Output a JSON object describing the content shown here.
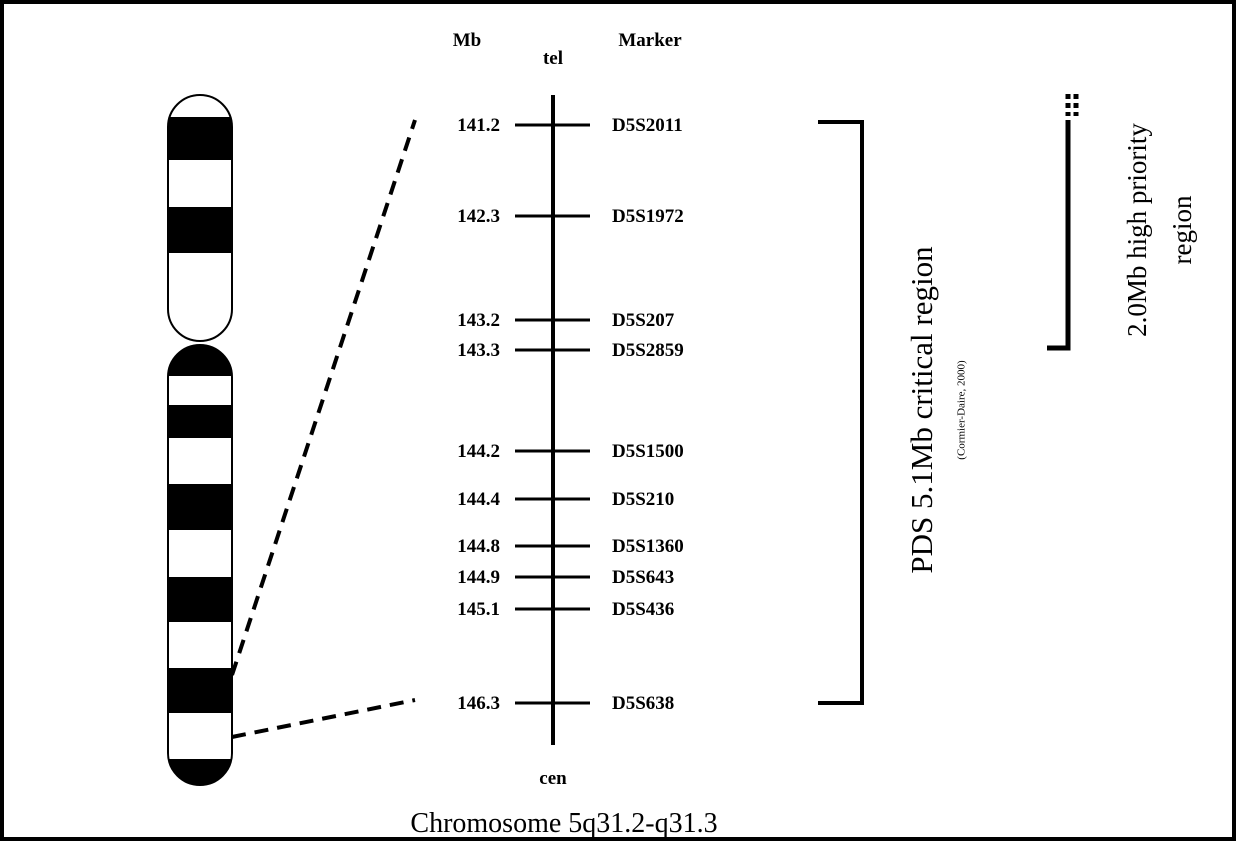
{
  "header": {
    "mb": "Mb",
    "tel": "tel",
    "marker": "Marker"
  },
  "markers": [
    {
      "mb": "141.2",
      "name": "D5S2011"
    },
    {
      "mb": "142.3",
      "name": "D5S1972"
    },
    {
      "mb": "143.2",
      "name": "D5S207"
    },
    {
      "mb": "143.3",
      "name": "D5S2859"
    },
    {
      "mb": "144.2",
      "name": "D5S1500"
    },
    {
      "mb": "144.4",
      "name": "D5S210"
    },
    {
      "mb": "144.8",
      "name": "D5S1360"
    },
    {
      "mb": "144.9",
      "name": "D5S643"
    },
    {
      "mb": "145.1",
      "name": "D5S436"
    },
    {
      "mb": "146.3",
      "name": "D5S638"
    }
  ],
  "cen": "cen",
  "critical_region": {
    "label": "PDS 5.1Mb critical region",
    "citation": "(Cormier-Daire, 2000)"
  },
  "priority_region": {
    "line1": "2.0Mb high priority",
    "line2": "region"
  },
  "caption": "Chromosome 5q31.2-q31.3"
}
